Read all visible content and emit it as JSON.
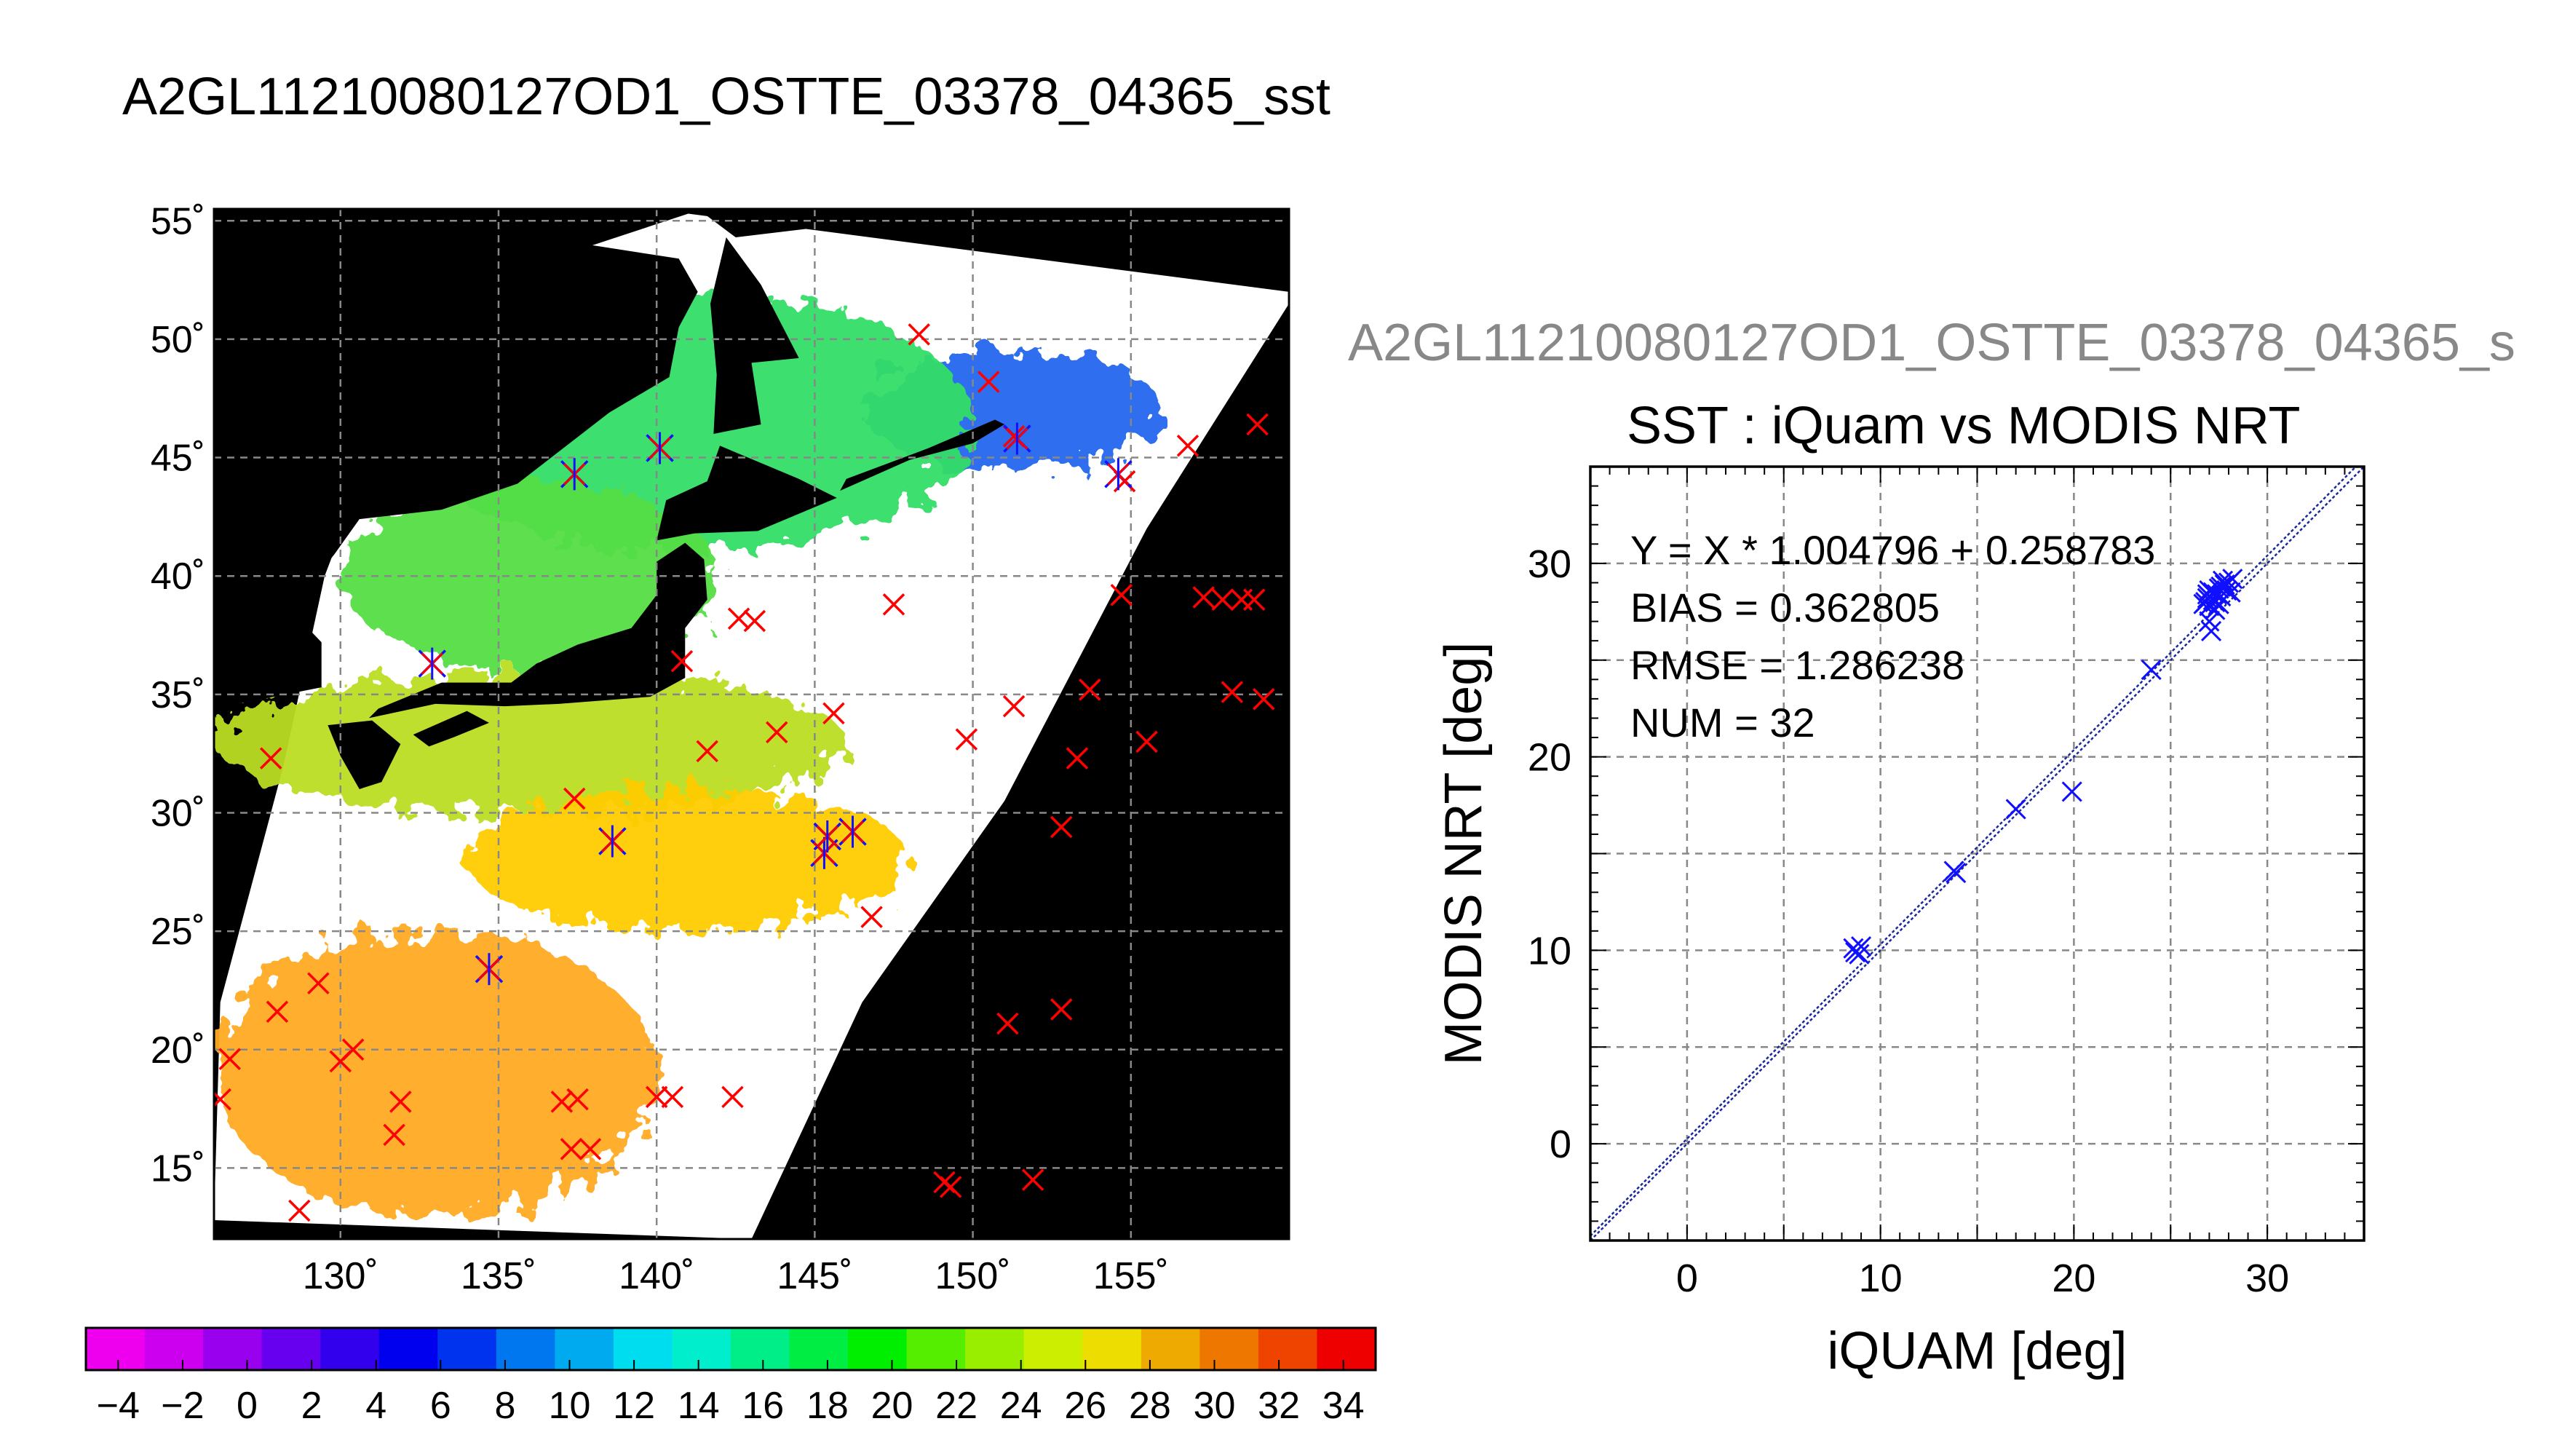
{
  "titles": {
    "map_title": "A2GL11210080127OD1_OSTTE_03378_04365_sst",
    "scatter_ghost_title": "A2GL11210080127OD1_OSTTE_03378_04365_s",
    "scatter_title": "SST : iQuam vs MODIS NRT"
  },
  "colors": {
    "land": "#000000",
    "cloud": "#ffffff",
    "buoy_marker": "#ff0000",
    "matched_marker": "#1010ff",
    "regression_line": "#1a2a9a",
    "grid": "#888888"
  },
  "chart_data": [
    {
      "type": "heatmap",
      "xlim": [
        126,
        160
      ],
      "ylim": [
        12,
        55.5
      ],
      "x_ticks": [
        130,
        135,
        140,
        145,
        150,
        155
      ],
      "x_tick_labels": [
        "130˚",
        "135˚",
        "140˚",
        "145˚",
        "150˚",
        "155˚"
      ],
      "y_ticks": [
        15,
        20,
        25,
        30,
        35,
        40,
        45,
        50,
        55
      ],
      "y_tick_labels": [
        "15˚",
        "20˚",
        "25˚",
        "30˚",
        "35˚",
        "40˚",
        "45˚",
        "50˚",
        "55˚"
      ],
      "grid": true,
      "colorbar": {
        "range": [
          -5,
          35
        ],
        "labels": [
          "−4",
          "−2",
          "0",
          "2",
          "4",
          "6",
          "8",
          "10",
          "12",
          "14",
          "16",
          "18",
          "20",
          "22",
          "24",
          "26",
          "28",
          "30",
          "32",
          "34"
        ],
        "colors": [
          "#ee00ee",
          "#cc00ee",
          "#9900ee",
          "#6600ee",
          "#3300ee",
          "#0000ee",
          "#0033ee",
          "#0077ee",
          "#00aaee",
          "#00ddee",
          "#00eecc",
          "#00ee88",
          "#00ee44",
          "#00ee00",
          "#55ee00",
          "#99ee00",
          "#ccee00",
          "#eedd00",
          "#eeaa00",
          "#ee7700",
          "#ee4400",
          "#ee0000"
        ]
      },
      "sst_regions": [
        {
          "name": "okhotsk",
          "color": "#2266ee",
          "lon": [
            146.5,
            156
          ],
          "lat": [
            44.5,
            49.5
          ]
        },
        {
          "name": "northern",
          "color": "#33dd66",
          "lon": [
            132,
            150
          ],
          "lat": [
            41,
            52
          ]
        },
        {
          "name": "japan_sea",
          "color": "#55dd44",
          "lon": [
            130,
            142
          ],
          "lat": [
            36,
            44
          ]
        },
        {
          "name": "mid",
          "color": "#bbdd22",
          "lon": [
            126,
            146
          ],
          "lat": [
            30,
            36
          ]
        },
        {
          "name": "south",
          "color": "#ffcc00",
          "lon": [
            134,
            148
          ],
          "lat": [
            25,
            31
          ]
        },
        {
          "name": "southwest",
          "color": "#ffaa22",
          "lon": [
            126,
            140
          ],
          "lat": [
            13,
            25
          ]
        }
      ],
      "buoys_red": [
        [
          148.3,
          50.2
        ],
        [
          150.5,
          48.2
        ],
        [
          151.3,
          45.9
        ],
        [
          154.8,
          44.0
        ],
        [
          156.8,
          45.5
        ],
        [
          159.0,
          46.4
        ],
        [
          147.5,
          38.8
        ],
        [
          154.7,
          39.2
        ],
        [
          157.3,
          39.1
        ],
        [
          157.9,
          39.0
        ],
        [
          158.5,
          39.0
        ],
        [
          158.9,
          39.0
        ],
        [
          140.8,
          36.4
        ],
        [
          142.6,
          38.2
        ],
        [
          143.1,
          38.1
        ],
        [
          145.6,
          34.2
        ],
        [
          151.3,
          34.5
        ],
        [
          153.7,
          35.2
        ],
        [
          158.2,
          35.1
        ],
        [
          159.2,
          34.8
        ],
        [
          143.8,
          33.4
        ],
        [
          141.6,
          32.6
        ],
        [
          149.8,
          33.1
        ],
        [
          153.3,
          32.3
        ],
        [
          155.5,
          33.0
        ],
        [
          127.8,
          32.3
        ],
        [
          137.4,
          30.6
        ],
        [
          152.8,
          29.4
        ],
        [
          146.8,
          25.6
        ],
        [
          128.0,
          21.6
        ],
        [
          129.3,
          22.8
        ],
        [
          126.5,
          19.6
        ],
        [
          130.0,
          19.5
        ],
        [
          130.4,
          20.0
        ],
        [
          126.2,
          17.9
        ],
        [
          131.9,
          17.8
        ],
        [
          131.7,
          16.4
        ],
        [
          137.0,
          17.8
        ],
        [
          137.5,
          17.9
        ],
        [
          137.3,
          15.8
        ],
        [
          137.9,
          15.8
        ],
        [
          140.0,
          18.0
        ],
        [
          140.5,
          18.0
        ],
        [
          142.4,
          18.0
        ],
        [
          151.1,
          21.1
        ],
        [
          152.8,
          21.7
        ],
        [
          128.7,
          13.2
        ],
        [
          149.3,
          14.2
        ],
        [
          149.1,
          14.4
        ],
        [
          151.9,
          14.5
        ]
      ],
      "buoys_matched": [
        [
          137.4,
          44.3
        ],
        [
          140.1,
          45.4
        ],
        [
          151.4,
          45.8
        ],
        [
          154.6,
          44.3
        ],
        [
          132.9,
          36.3
        ],
        [
          138.6,
          28.8
        ],
        [
          145.3,
          28.3
        ],
        [
          145.4,
          29.0
        ],
        [
          146.2,
          29.2
        ],
        [
          134.7,
          23.4
        ]
      ]
    },
    {
      "type": "scatter",
      "xlabel": "iQUAM [deg]",
      "ylabel": "MODIS NRT [deg]",
      "xlim": [
        -5,
        35
      ],
      "ylim": [
        -5,
        35
      ],
      "x_ticks": [
        0,
        10,
        20,
        30
      ],
      "y_ticks": [
        0,
        10,
        20,
        30
      ],
      "grid": true,
      "annotations": [
        "Y = X * 1.004796 + 0.258783",
        "BIAS = 0.362805",
        "RMSE = 1.286238",
        "NUM = 32"
      ],
      "regression": {
        "slope": 1.004796,
        "intercept": 0.258783
      },
      "points": [
        [
          8.6,
          10.1
        ],
        [
          8.9,
          9.8
        ],
        [
          8.7,
          9.9
        ],
        [
          9.0,
          10.2
        ],
        [
          13.8,
          14.1
        ],
        [
          13.9,
          14.0
        ],
        [
          17.0,
          17.3
        ],
        [
          19.9,
          18.2
        ],
        [
          24.0,
          24.5
        ],
        [
          26.8,
          28.0
        ],
        [
          27.0,
          27.8
        ],
        [
          26.9,
          28.2
        ],
        [
          27.2,
          28.5
        ],
        [
          27.3,
          28.0
        ],
        [
          27.5,
          28.7
        ],
        [
          27.6,
          28.3
        ],
        [
          27.8,
          28.9
        ],
        [
          28.0,
          29.0
        ],
        [
          27.1,
          26.5
        ],
        [
          27.0,
          27.0
        ],
        [
          27.4,
          28.4
        ],
        [
          26.7,
          27.9
        ],
        [
          27.9,
          28.6
        ],
        [
          27.2,
          28.1
        ],
        [
          27.6,
          28.8
        ],
        [
          28.1,
          28.5
        ],
        [
          27.3,
          27.6
        ],
        [
          26.9,
          28.4
        ],
        [
          27.7,
          29.1
        ],
        [
          27.0,
          28.6
        ],
        [
          27.5,
          27.9
        ],
        [
          28.2,
          29.2
        ]
      ]
    }
  ]
}
